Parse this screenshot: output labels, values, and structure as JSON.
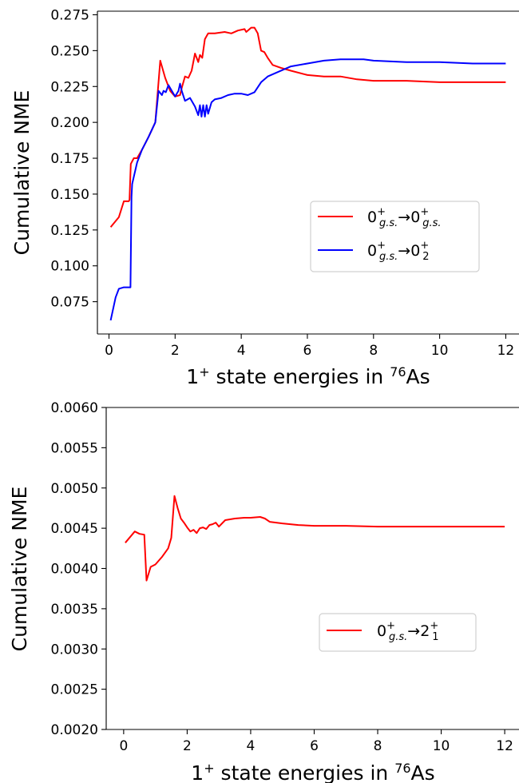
{
  "chart_data": [
    {
      "type": "line",
      "xlabel": "1$^+$ state energies in $^{76}$As",
      "ylabel": "Cumulative NME",
      "xlim": [
        -0.35,
        12.4
      ],
      "ylim": [
        0.0525,
        0.2775
      ],
      "xticks": [
        0,
        2,
        4,
        6,
        8,
        10,
        12
      ],
      "xtick_labels": [
        "0",
        "2",
        "4",
        "6",
        "8",
        "10",
        "12"
      ],
      "yticks": [
        0.075,
        0.1,
        0.125,
        0.15,
        0.175,
        0.2,
        0.225,
        0.25,
        0.275
      ],
      "ytick_labels": [
        "0.075",
        "0.100",
        "0.125",
        "0.150",
        "0.175",
        "0.200",
        "0.225",
        "0.250",
        "0.275"
      ],
      "grid": false,
      "legend_position": "center-right",
      "series": [
        {
          "name": "0$^+_{g.s.}$→0$^+_{g.s.}$",
          "color": "#ff0000",
          "x": [
            0.05,
            0.3,
            0.45,
            0.6,
            0.62,
            0.66,
            0.75,
            0.85,
            1.0,
            1.2,
            1.4,
            1.55,
            1.7,
            1.85,
            2.0,
            2.15,
            2.2,
            2.3,
            2.4,
            2.5,
            2.6,
            2.7,
            2.75,
            2.82,
            2.9,
            3.0,
            3.2,
            3.5,
            3.7,
            3.9,
            4.1,
            4.15,
            4.3,
            4.4,
            4.5,
            4.6,
            4.7,
            4.8,
            4.95,
            5.2,
            5.5,
            6.0,
            6.5,
            7.0,
            7.5,
            8.0,
            9.0,
            10.0,
            11.0,
            12.0
          ],
          "y": [
            0.127,
            0.134,
            0.145,
            0.145,
            0.146,
            0.171,
            0.175,
            0.175,
            0.181,
            0.19,
            0.2,
            0.243,
            0.231,
            0.222,
            0.218,
            0.219,
            0.224,
            0.232,
            0.231,
            0.236,
            0.248,
            0.242,
            0.247,
            0.245,
            0.258,
            0.262,
            0.262,
            0.263,
            0.262,
            0.264,
            0.265,
            0.263,
            0.266,
            0.266,
            0.262,
            0.25,
            0.249,
            0.245,
            0.24,
            0.238,
            0.236,
            0.233,
            0.232,
            0.232,
            0.23,
            0.229,
            0.229,
            0.228,
            0.228,
            0.228
          ]
        },
        {
          "name": "0$^+_{g.s.}$→0$^+_2$",
          "color": "#0000ff",
          "x": [
            0.05,
            0.2,
            0.3,
            0.45,
            0.55,
            0.65,
            0.68,
            0.7,
            0.85,
            1.0,
            1.2,
            1.4,
            1.5,
            1.6,
            1.65,
            1.72,
            1.8,
            1.9,
            2.0,
            2.1,
            2.15,
            2.2,
            2.3,
            2.45,
            2.6,
            2.7,
            2.75,
            2.8,
            2.85,
            2.9,
            2.95,
            3.0,
            3.1,
            3.2,
            3.4,
            3.6,
            3.8,
            4.0,
            4.2,
            4.4,
            4.6,
            4.8,
            5.0,
            5.5,
            6.0,
            6.5,
            7.0,
            7.3,
            7.7,
            8.0,
            9.0,
            10.0,
            11.0,
            12.0
          ],
          "y": [
            0.062,
            0.078,
            0.084,
            0.085,
            0.085,
            0.085,
            0.148,
            0.157,
            0.172,
            0.181,
            0.19,
            0.2,
            0.222,
            0.219,
            0.222,
            0.221,
            0.226,
            0.222,
            0.218,
            0.222,
            0.227,
            0.222,
            0.215,
            0.217,
            0.211,
            0.205,
            0.212,
            0.204,
            0.212,
            0.204,
            0.212,
            0.206,
            0.214,
            0.216,
            0.217,
            0.219,
            0.22,
            0.22,
            0.219,
            0.221,
            0.228,
            0.232,
            0.234,
            0.239,
            0.241,
            0.243,
            0.244,
            0.244,
            0.244,
            0.243,
            0.242,
            0.242,
            0.241,
            0.241
          ]
        }
      ]
    },
    {
      "type": "line",
      "xlabel": "1$^+$ state energies in $^{76}$As",
      "ylabel": "Cumulative NME",
      "xlim": [
        -0.55,
        12.45
      ],
      "ylim": [
        0.002,
        0.006
      ],
      "xticks": [
        0,
        2,
        4,
        6,
        8,
        10,
        12
      ],
      "xtick_labels": [
        "0",
        "2",
        "4",
        "6",
        "8",
        "10",
        "12"
      ],
      "yticks": [
        0.002,
        0.0025,
        0.003,
        0.0035,
        0.004,
        0.0045,
        0.005,
        0.0055,
        0.006
      ],
      "ytick_labels": [
        "0.0020",
        "0.0025",
        "0.0030",
        "0.0035",
        "0.0040",
        "0.0045",
        "0.0050",
        "0.0055",
        "0.0060"
      ],
      "grid": false,
      "legend_position": "lower-right",
      "series": [
        {
          "name": "0$^+_{g.s.}$→2$^+_1$",
          "color": "#ff0000",
          "x": [
            0.05,
            0.35,
            0.5,
            0.65,
            0.72,
            0.85,
            1.0,
            1.2,
            1.4,
            1.5,
            1.6,
            1.7,
            1.8,
            1.9,
            2.0,
            2.1,
            2.2,
            2.3,
            2.4,
            2.5,
            2.6,
            2.7,
            2.8,
            2.9,
            3.0,
            3.2,
            3.5,
            3.8,
            4.0,
            4.3,
            4.45,
            4.6,
            5.0,
            5.5,
            6.0,
            7.0,
            8.0,
            9.0,
            10.0,
            11.0,
            12.0
          ],
          "y": [
            0.00432,
            0.00446,
            0.00443,
            0.00442,
            0.00385,
            0.00402,
            0.00405,
            0.00414,
            0.00425,
            0.00438,
            0.0049,
            0.00475,
            0.00462,
            0.00457,
            0.00451,
            0.00446,
            0.00448,
            0.00444,
            0.0045,
            0.00451,
            0.00449,
            0.00454,
            0.00455,
            0.00457,
            0.00452,
            0.0046,
            0.00462,
            0.00463,
            0.00463,
            0.00464,
            0.00462,
            0.00458,
            0.00456,
            0.00454,
            0.00453,
            0.00453,
            0.00452,
            0.00452,
            0.00452,
            0.00452,
            0.00452
          ]
        }
      ]
    }
  ]
}
